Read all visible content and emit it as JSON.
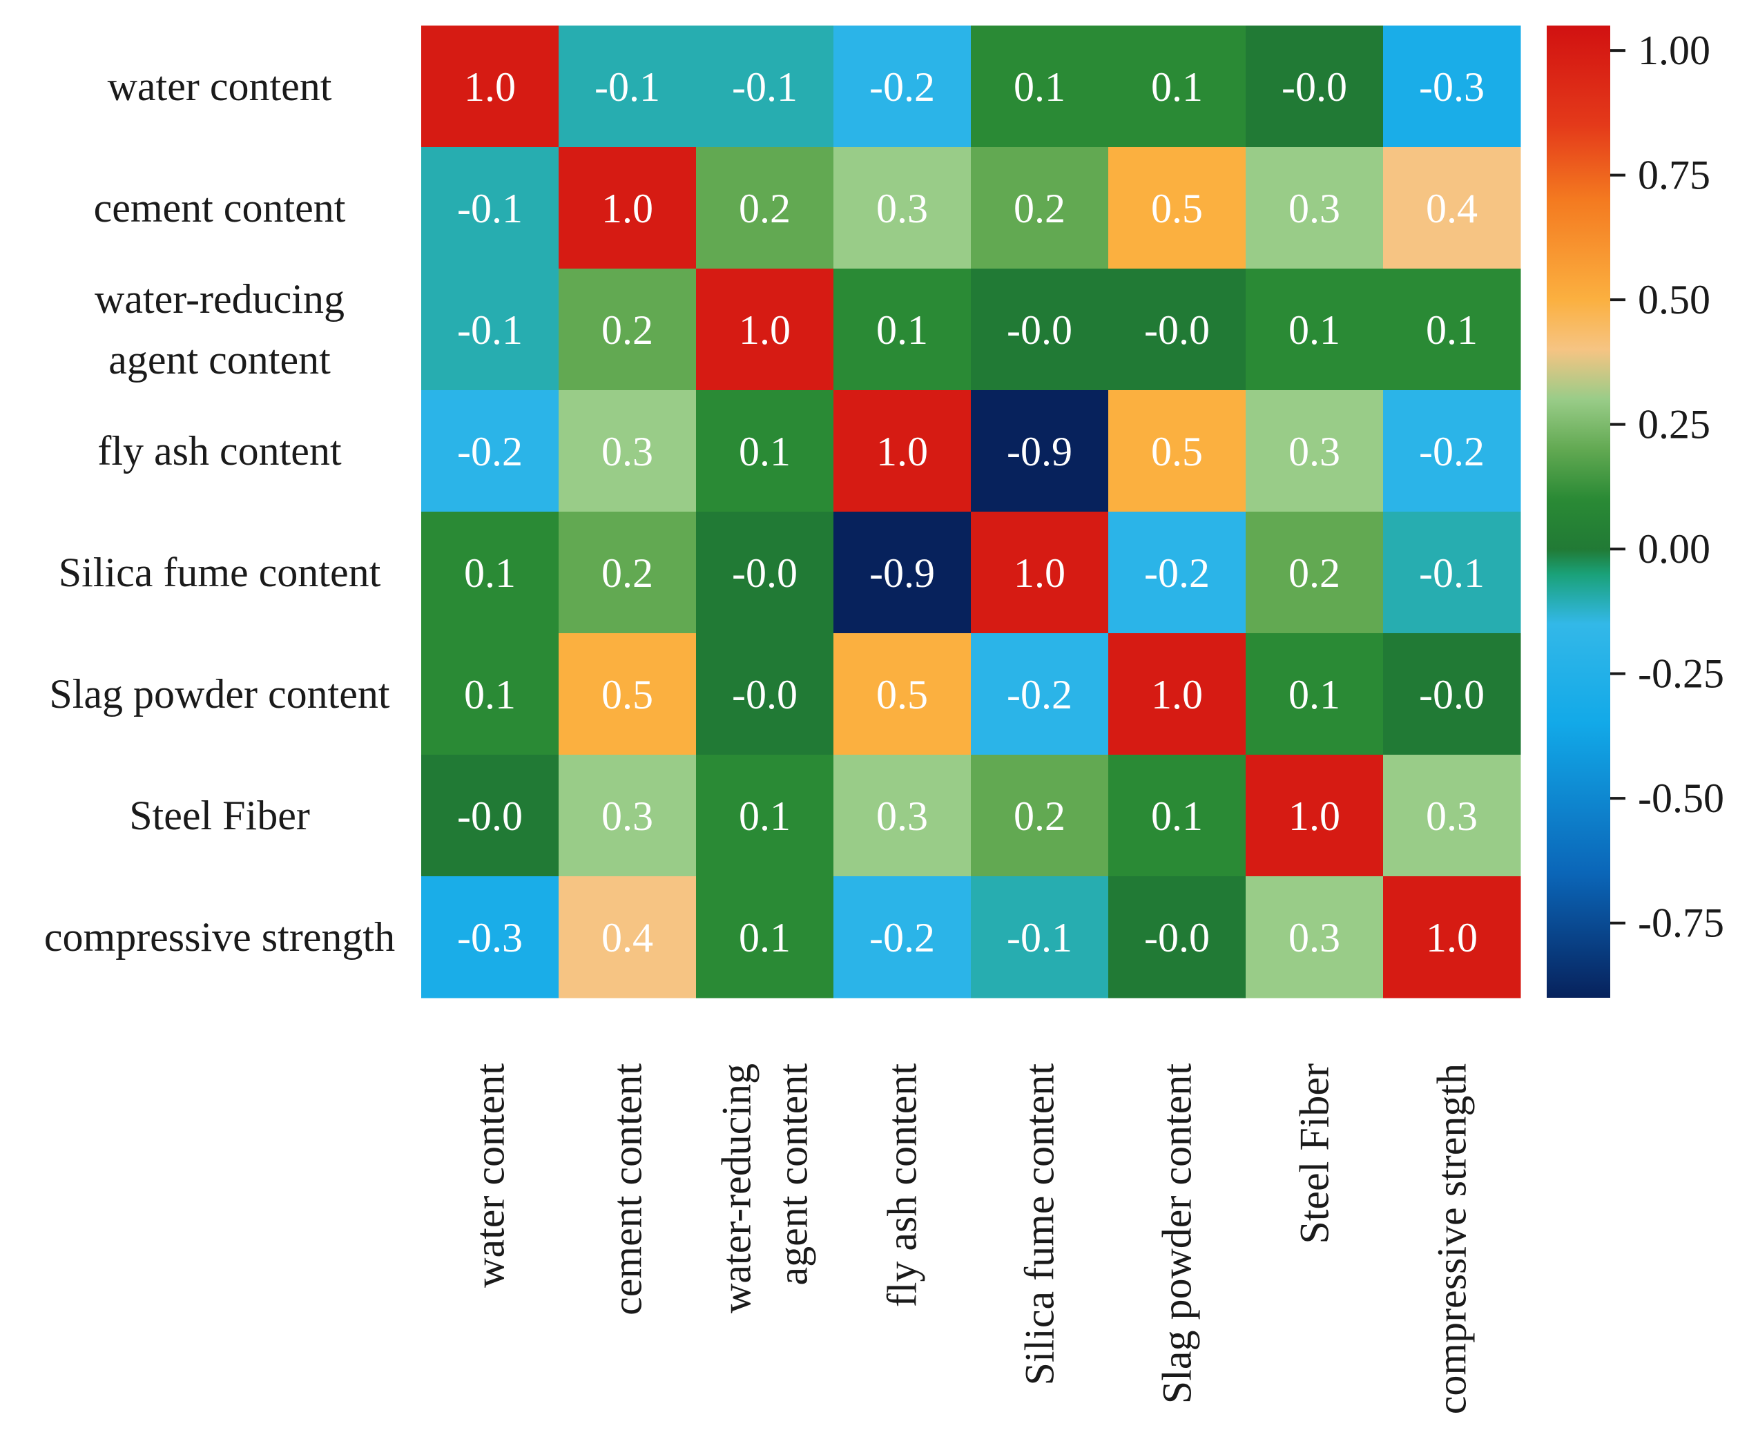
{
  "chart_data": {
    "type": "heatmap",
    "title": "",
    "row_labels": [
      [
        "water content"
      ],
      [
        "cement content"
      ],
      [
        "water-reducing",
        "agent content"
      ],
      [
        "fly ash content"
      ],
      [
        "Silica fume content"
      ],
      [
        "Slag powder content"
      ],
      [
        "Steel Fiber"
      ],
      [
        "compressive strength"
      ]
    ],
    "col_labels": [
      [
        "water content"
      ],
      [
        "cement content"
      ],
      [
        "water-reducing",
        "agent content"
      ],
      [
        "fly ash content"
      ],
      [
        "Silica fume content"
      ],
      [
        "Slag powder content"
      ],
      [
        "Steel Fiber"
      ],
      [
        "compressive strength"
      ]
    ],
    "values": [
      [
        1.0,
        -0.1,
        -0.1,
        -0.2,
        0.1,
        0.1,
        -0.0,
        -0.3
      ],
      [
        -0.1,
        1.0,
        0.2,
        0.3,
        0.2,
        0.5,
        0.3,
        0.4
      ],
      [
        -0.1,
        0.2,
        1.0,
        0.1,
        -0.0,
        -0.0,
        0.1,
        0.1
      ],
      [
        -0.2,
        0.3,
        0.1,
        1.0,
        -0.9,
        0.5,
        0.3,
        -0.2
      ],
      [
        0.1,
        0.2,
        -0.0,
        -0.9,
        1.0,
        -0.2,
        0.2,
        -0.1
      ],
      [
        0.1,
        0.5,
        -0.0,
        0.5,
        -0.2,
        1.0,
        0.1,
        -0.0
      ],
      [
        -0.0,
        0.3,
        0.1,
        0.3,
        0.2,
        0.1,
        1.0,
        0.3
      ],
      [
        -0.3,
        0.4,
        0.1,
        -0.2,
        -0.1,
        -0.0,
        0.3,
        1.0
      ]
    ],
    "cell_labels": [
      [
        "1.0",
        "-0.1",
        "-0.1",
        "-0.2",
        "0.1",
        "0.1",
        "-0.0",
        "-0.3"
      ],
      [
        "-0.1",
        "1.0",
        "0.2",
        "0.3",
        "0.2",
        "0.5",
        "0.3",
        "0.4"
      ],
      [
        "-0.1",
        "0.2",
        "1.0",
        "0.1",
        "-0.0",
        "-0.0",
        "0.1",
        "0.1"
      ],
      [
        "-0.2",
        "0.3",
        "0.1",
        "1.0",
        "-0.9",
        "0.5",
        "0.3",
        "-0.2"
      ],
      [
        "0.1",
        "0.2",
        "-0.0",
        "-0.9",
        "1.0",
        "-0.2",
        "0.2",
        "-0.1"
      ],
      [
        "0.1",
        "0.5",
        "-0.0",
        "0.5",
        "-0.2",
        "1.0",
        "0.1",
        "-0.0"
      ],
      [
        "-0.0",
        "0.3",
        "0.1",
        "0.3",
        "0.2",
        "0.1",
        "1.0",
        "0.3"
      ],
      [
        "-0.3",
        "0.4",
        "0.1",
        "-0.2",
        "-0.1",
        "-0.0",
        "0.3",
        "1.0"
      ]
    ],
    "colorbar": {
      "range": [
        -0.9,
        1.05
      ],
      "ticks": [
        1.0,
        0.75,
        0.5,
        0.25,
        0.0,
        -0.25,
        -0.5,
        -0.75
      ],
      "tick_labels": [
        "1.00",
        "0.75",
        "0.50",
        "0.25",
        "0.00",
        "-0.25",
        "-0.50",
        "-0.75"
      ],
      "color_stops": [
        {
          "value": -0.9,
          "color": "#07225c"
        },
        {
          "value": -0.65,
          "color": "#0b66b8"
        },
        {
          "value": -0.35,
          "color": "#12a9e8"
        },
        {
          "value": -0.15,
          "color": "#33b8e8"
        },
        {
          "value": -0.05,
          "color": "#1aa178"
        },
        {
          "value": 0.0,
          "color": "#217a35"
        },
        {
          "value": 0.1,
          "color": "#2a8a35"
        },
        {
          "value": 0.2,
          "color": "#62a952"
        },
        {
          "value": 0.3,
          "color": "#99cc88"
        },
        {
          "value": 0.4,
          "color": "#f6c483"
        },
        {
          "value": 0.5,
          "color": "#fbb040"
        },
        {
          "value": 0.7,
          "color": "#f47a20"
        },
        {
          "value": 0.85,
          "color": "#e43a1a"
        },
        {
          "value": 1.05,
          "color": "#d11111"
        }
      ]
    },
    "xlabel": "",
    "ylabel": ""
  }
}
